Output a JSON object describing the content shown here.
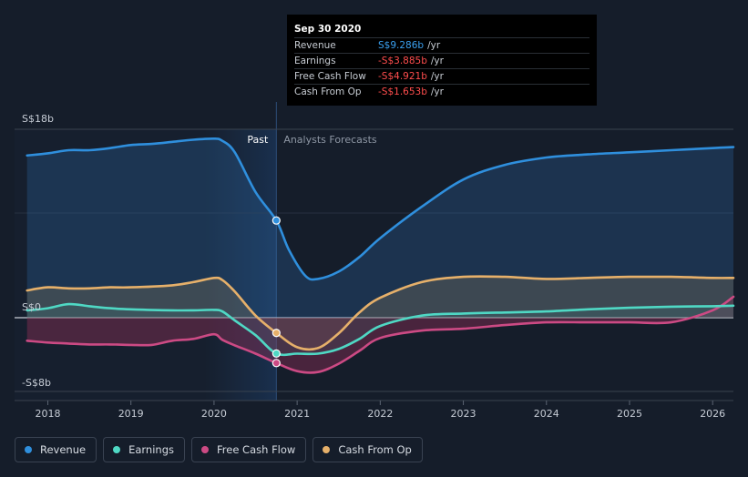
{
  "tooltip": {
    "date": "Sep 30 2020",
    "rows": [
      {
        "label": "Revenue",
        "value": "S$9.286b",
        "unit": "/yr",
        "color": "#3aa0f0"
      },
      {
        "label": "Earnings",
        "value": "-S$3.885b",
        "unit": "/yr",
        "color": "#ff4d4d"
      },
      {
        "label": "Free Cash Flow",
        "value": "-S$4.921b",
        "unit": "/yr",
        "color": "#ff4d4d"
      },
      {
        "label": "Cash From Op",
        "value": "-S$1.653b",
        "unit": "/yr",
        "color": "#ff4d4d"
      }
    ]
  },
  "legend": [
    {
      "label": "Revenue",
      "color": "#2f8fdd"
    },
    {
      "label": "Earnings",
      "color": "#4fd8c4"
    },
    {
      "label": "Free Cash Flow",
      "color": "#cc4a84"
    },
    {
      "label": "Cash From Op",
      "color": "#e6b06a"
    }
  ],
  "chart_data": {
    "type": "line",
    "title": "",
    "xlabel": "",
    "ylabel": "",
    "section_labels": {
      "past": "Past",
      "forecast": "Analysts Forecasts"
    },
    "divider_x": 2020.75,
    "highlight_x": 2020.75,
    "xlim": [
      2017.6,
      2026.25
    ],
    "ylim": [
      -8,
      18
    ],
    "x_ticks": [
      2018,
      2019,
      2020,
      2021,
      2022,
      2023,
      2024,
      2025,
      2026
    ],
    "x_tick_labels": [
      "2018",
      "2019",
      "2020",
      "2021",
      "2022",
      "2023",
      "2024",
      "2025",
      "2026"
    ],
    "y_ticks": [
      {
        "value": 18,
        "label": "S$18b"
      },
      {
        "value": 0,
        "label": "S$0"
      },
      {
        "value": -8,
        "label": "-S$8b"
      }
    ],
    "series": [
      {
        "name": "Revenue",
        "color": "#2f8fdd",
        "x": [
          2017.75,
          2018.0,
          2018.25,
          2018.5,
          2018.75,
          2019.0,
          2019.25,
          2019.5,
          2019.75,
          2020.0,
          2020.1,
          2020.25,
          2020.5,
          2020.75,
          2020.9,
          2021.1,
          2021.25,
          2021.5,
          2021.75,
          2022.0,
          2022.5,
          2023.0,
          2023.5,
          2024.0,
          2024.5,
          2025.0,
          2025.5,
          2026.0,
          2026.25
        ],
        "y": [
          15.5,
          15.7,
          16.0,
          16.0,
          16.2,
          16.5,
          16.6,
          16.8,
          17.0,
          17.1,
          16.9,
          15.8,
          12.0,
          9.286,
          6.5,
          4.0,
          3.7,
          4.4,
          5.8,
          7.6,
          10.6,
          13.2,
          14.6,
          15.3,
          15.6,
          15.8,
          16.0,
          16.2,
          16.3
        ]
      },
      {
        "name": "Earnings",
        "color": "#4fd8c4",
        "x": [
          2017.75,
          2018.0,
          2018.25,
          2018.5,
          2018.75,
          2019.0,
          2019.5,
          2019.75,
          2020.0,
          2020.1,
          2020.25,
          2020.5,
          2020.75,
          2021.0,
          2021.25,
          2021.5,
          2021.75,
          2022.0,
          2022.5,
          2023.0,
          2023.5,
          2024.0,
          2024.5,
          2025.0,
          2025.5,
          2026.0,
          2026.25
        ],
        "y": [
          0.7,
          0.9,
          1.3,
          1.1,
          0.9,
          0.8,
          0.7,
          0.7,
          0.75,
          0.6,
          -0.3,
          -1.9,
          -3.885,
          -3.9,
          -3.9,
          -3.4,
          -2.3,
          -0.9,
          0.2,
          0.4,
          0.5,
          0.6,
          0.8,
          0.95,
          1.05,
          1.1,
          1.15
        ]
      },
      {
        "name": "Free Cash Flow",
        "color": "#cc4a84",
        "x": [
          2017.75,
          2018.0,
          2018.25,
          2018.5,
          2018.75,
          2019.0,
          2019.25,
          2019.5,
          2019.75,
          2020.0,
          2020.1,
          2020.25,
          2020.5,
          2020.75,
          2021.0,
          2021.25,
          2021.5,
          2021.75,
          2022.0,
          2022.5,
          2023.0,
          2023.5,
          2024.0,
          2024.5,
          2025.0,
          2025.5,
          2026.0,
          2026.25
        ],
        "y": [
          -2.5,
          -2.7,
          -2.8,
          -2.9,
          -2.9,
          -2.95,
          -2.95,
          -2.5,
          -2.3,
          -1.8,
          -2.4,
          -3.0,
          -3.9,
          -4.921,
          -5.8,
          -5.9,
          -5.0,
          -3.6,
          -2.2,
          -1.4,
          -1.2,
          -0.8,
          -0.5,
          -0.5,
          -0.5,
          -0.5,
          0.7,
          2.0
        ]
      },
      {
        "name": "Cash From Op",
        "color": "#e6b06a",
        "x": [
          2017.75,
          2018.0,
          2018.25,
          2018.5,
          2018.75,
          2019.0,
          2019.5,
          2019.75,
          2020.0,
          2020.1,
          2020.25,
          2020.5,
          2020.75,
          2021.0,
          2021.25,
          2021.5,
          2021.75,
          2022.0,
          2022.5,
          2023.0,
          2023.5,
          2024.0,
          2024.5,
          2025.0,
          2025.5,
          2026.0,
          2026.25
        ],
        "y": [
          2.6,
          2.9,
          2.8,
          2.8,
          2.9,
          2.9,
          3.1,
          3.4,
          3.8,
          3.6,
          2.5,
          0.2,
          -1.653,
          -3.2,
          -3.3,
          -1.7,
          0.5,
          1.9,
          3.4,
          3.9,
          3.9,
          3.7,
          3.8,
          3.9,
          3.9,
          3.8,
          3.8
        ]
      }
    ]
  }
}
